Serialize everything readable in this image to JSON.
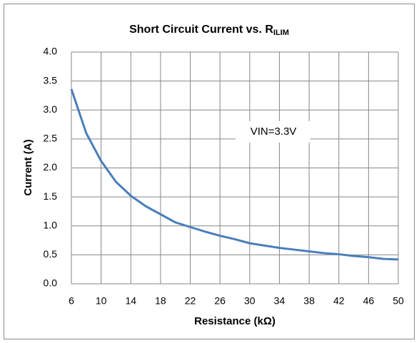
{
  "chart_data": {
    "type": "line",
    "title": "Short Circuit Current vs. R",
    "title_subscript": "ILIM",
    "x_label": "Resistance (kΩ)",
    "y_label": "Current (A)",
    "annotation": "VIN=3.3V",
    "x": [
      6,
      8,
      10,
      12,
      14,
      16,
      18,
      20,
      22,
      24,
      26,
      28,
      30,
      32,
      34,
      36,
      38,
      40,
      42,
      44,
      46,
      48,
      50
    ],
    "series": [
      {
        "name": "VIN=3.3V",
        "color": "#4a7ebb",
        "values": [
          3.36,
          2.6,
          2.12,
          1.76,
          1.52,
          1.34,
          1.2,
          1.06,
          0.98,
          0.9,
          0.83,
          0.77,
          0.7,
          0.66,
          0.62,
          0.59,
          0.56,
          0.53,
          0.51,
          0.48,
          0.46,
          0.43,
          0.42
        ]
      }
    ],
    "xlim": [
      6,
      50
    ],
    "xticks": [
      6,
      10,
      14,
      18,
      22,
      26,
      30,
      34,
      38,
      42,
      46,
      50
    ],
    "ylim": [
      0,
      4
    ],
    "yticks": [
      {
        "value": 0,
        "label": "0.0"
      },
      0.5,
      {
        "value": 1,
        "label": "1.0"
      },
      1.5,
      {
        "value": 2,
        "label": "2.0"
      },
      2.5,
      {
        "value": 3,
        "label": "3.0"
      },
      3.5,
      {
        "value": 4,
        "label": "4.0"
      }
    ],
    "grid": true
  }
}
